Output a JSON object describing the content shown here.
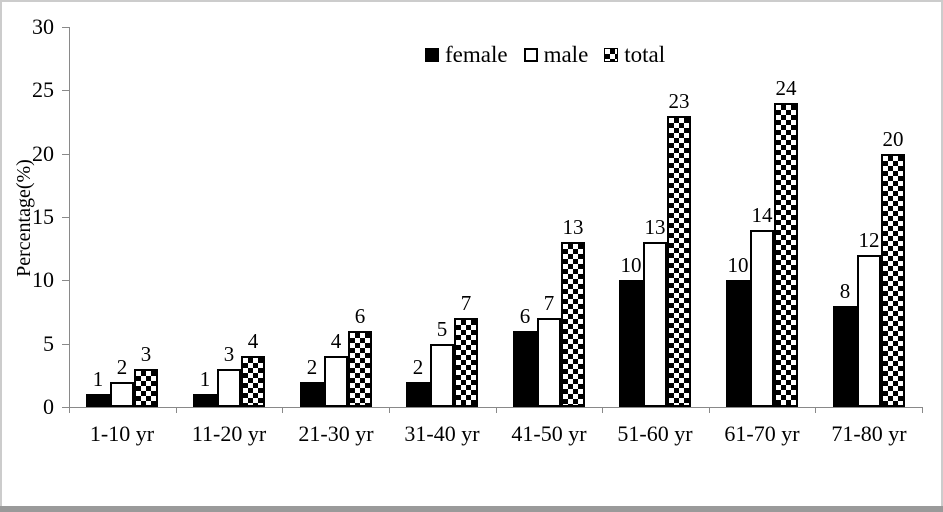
{
  "chart_data": {
    "type": "bar",
    "title": "",
    "ylabel": "Percentage(%)",
    "xlabel": "",
    "categories": [
      "1-10 yr",
      "11-20 yr",
      "21-30 yr",
      "31-40 yr",
      "41-50 yr",
      "51-60 yr",
      "61-70 yr",
      "71-80 yr"
    ],
    "series": [
      {
        "name": "female",
        "fill": "solid-black",
        "values": [
          1,
          1,
          2,
          2,
          6,
          10,
          10,
          8
        ]
      },
      {
        "name": "male",
        "fill": "white-outline",
        "values": [
          2,
          3,
          4,
          5,
          7,
          13,
          14,
          12
        ]
      },
      {
        "name": "total",
        "fill": "checker",
        "values": [
          3,
          4,
          6,
          7,
          13,
          23,
          24,
          20
        ]
      }
    ],
    "ylim": [
      0,
      30
    ],
    "yticks": [
      0,
      5,
      10,
      15,
      20,
      25,
      30
    ],
    "grid": false,
    "data_labels": true,
    "legend_position": "top-center",
    "colors": {
      "bar_fill": "#000000",
      "bar_outline": "#000000",
      "axis": "#898989",
      "text": "#000000",
      "frame": "#cccccc",
      "bottom_bar": "#9a9a9a",
      "background": "#ffffff"
    }
  }
}
